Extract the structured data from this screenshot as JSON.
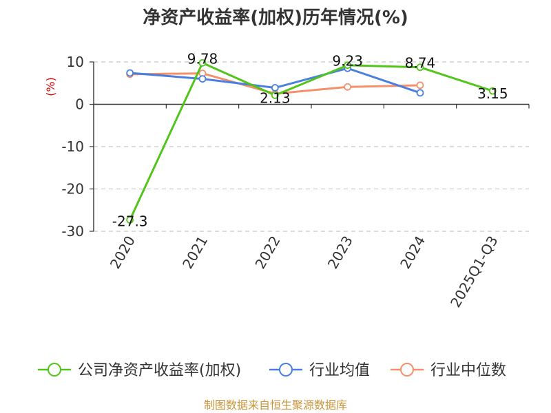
{
  "chart_data": {
    "type": "line",
    "title": "净资产收益率(加权)历年情况(%)",
    "ylabel": "(%)",
    "categories": [
      "2020",
      "2021",
      "2022",
      "2023",
      "2024",
      "2025Q1-Q3"
    ],
    "ylim": [
      -30,
      10
    ],
    "yticks": [
      10,
      0,
      -10,
      -20,
      -30
    ],
    "grid": "horizontal dashed",
    "legend_position": "bottom",
    "series": [
      {
        "name": "公司净资产收益率(加权)",
        "color": "#52c41a",
        "values": [
          -27.3,
          9.78,
          2.13,
          9.23,
          8.74,
          3.15
        ],
        "labels": [
          "-27.3",
          "9.78",
          "2.13",
          "9.23",
          "8.74",
          "3.15"
        ]
      },
      {
        "name": "行业均值",
        "color": "#4a7fe0",
        "values": [
          7.4,
          6.0,
          3.9,
          8.5,
          2.7,
          null
        ]
      },
      {
        "name": "行业中位数",
        "color": "#f4906a",
        "values": [
          7.1,
          7.3,
          2.5,
          4.1,
          4.5,
          null
        ]
      }
    ]
  },
  "source": "制图数据来自恒生聚源数据库"
}
